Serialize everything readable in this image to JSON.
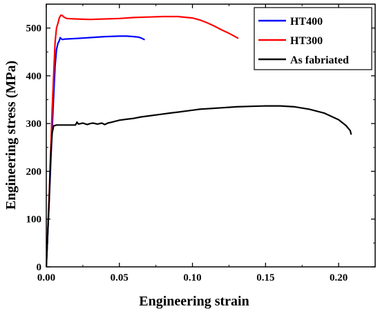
{
  "chart_data": {
    "type": "line",
    "title": "",
    "xlabel": "Engineering strain",
    "ylabel": "Engineering stress (MPa)",
    "xlim": [
      0,
      0.225
    ],
    "ylim": [
      0,
      550
    ],
    "xticks": [
      0.0,
      0.05,
      0.1,
      0.15,
      0.2
    ],
    "xtick_labels": [
      "0.00",
      "0.05",
      "0.10",
      "0.15",
      "0.20"
    ],
    "yticks": [
      0,
      100,
      200,
      300,
      400,
      500
    ],
    "ytick_labels": [
      "0",
      "100",
      "200",
      "300",
      "400",
      "500"
    ],
    "grid": false,
    "legend_position": "top-right",
    "series": [
      {
        "name": "HT400",
        "color": "#0000ff",
        "x": [
          0,
          0.002,
          0.004,
          0.006,
          0.007,
          0.008,
          0.009,
          0.0095,
          0.01,
          0.011,
          0.013,
          0.02,
          0.03,
          0.04,
          0.05,
          0.055,
          0.06,
          0.063,
          0.065,
          0.067
        ],
        "y": [
          0,
          140,
          290,
          420,
          455,
          468,
          474,
          480,
          478,
          476,
          477,
          478,
          480,
          482,
          483,
          483,
          482,
          481,
          479,
          476
        ]
      },
      {
        "name": "HT300",
        "color": "#ff0000",
        "x": [
          0,
          0.002,
          0.004,
          0.006,
          0.007,
          0.008,
          0.009,
          0.01,
          0.011,
          0.012,
          0.014,
          0.02,
          0.03,
          0.04,
          0.05,
          0.06,
          0.07,
          0.08,
          0.09,
          0.1,
          0.105,
          0.11,
          0.115,
          0.12,
          0.125,
          0.128,
          0.131
        ],
        "y": [
          0,
          150,
          330,
          470,
          500,
          510,
          522,
          527,
          526,
          523,
          520,
          519,
          518,
          519,
          520,
          522,
          523,
          524,
          524,
          521,
          517,
          511,
          504,
          496,
          489,
          484,
          479
        ]
      },
      {
        "name": "As fabriated",
        "color": "#000000",
        "x": [
          0,
          0.002,
          0.003,
          0.004,
          0.005,
          0.007,
          0.01,
          0.015,
          0.02,
          0.021,
          0.022,
          0.025,
          0.028,
          0.03,
          0.032,
          0.035,
          0.038,
          0.04,
          0.042,
          0.045,
          0.05,
          0.055,
          0.06,
          0.065,
          0.07,
          0.075,
          0.08,
          0.085,
          0.09,
          0.095,
          0.1,
          0.105,
          0.11,
          0.115,
          0.12,
          0.125,
          0.13,
          0.14,
          0.15,
          0.16,
          0.17,
          0.18,
          0.19,
          0.2,
          0.205,
          0.208,
          0.2085
        ],
        "y": [
          0,
          140,
          230,
          280,
          295,
          297,
          297,
          297,
          297,
          303,
          299,
          301,
          298,
          300,
          301,
          299,
          301,
          298,
          301,
          303,
          307,
          309,
          311,
          314,
          316,
          318,
          320,
          322,
          324,
          326,
          328,
          330,
          331,
          332,
          333,
          334,
          335,
          336,
          337,
          337,
          335,
          330,
          322,
          308,
          296,
          285,
          278
        ]
      }
    ]
  }
}
